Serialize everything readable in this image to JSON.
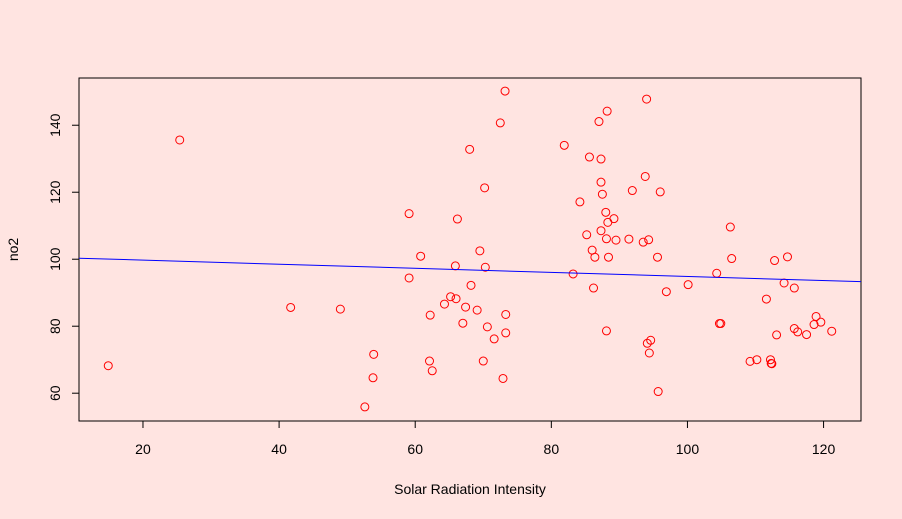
{
  "chart_data": {
    "type": "scatter",
    "title": "",
    "xlabel": "Solar Radiation Intensity",
    "ylabel": "no2",
    "xlim": [
      10.6,
      125.5
    ],
    "ylim": [
      51.7,
      154.1
    ],
    "xticks": [
      20,
      40,
      60,
      80,
      100,
      120
    ],
    "yticks": [
      60,
      80,
      100,
      120,
      140
    ],
    "grid": false,
    "legend": "none",
    "point_color": "#FF0000",
    "line_color": "#0000FF",
    "background": "#FFE4E1",
    "points": [
      [
        14.9,
        68.2
      ],
      [
        25.4,
        135.6
      ],
      [
        41.7,
        85.6
      ],
      [
        49.0,
        85.1
      ],
      [
        52.6,
        55.9
      ],
      [
        53.8,
        64.6
      ],
      [
        53.9,
        71.6
      ],
      [
        59.1,
        113.6
      ],
      [
        59.1,
        94.4
      ],
      [
        60.8,
        100.9
      ],
      [
        62.1,
        69.6
      ],
      [
        62.2,
        83.3
      ],
      [
        62.5,
        66.7
      ],
      [
        64.3,
        86.6
      ],
      [
        65.2,
        88.8
      ],
      [
        65.9,
        98.0
      ],
      [
        66.0,
        88.2
      ],
      [
        66.2,
        112.0
      ],
      [
        67.0,
        80.9
      ],
      [
        67.4,
        85.7
      ],
      [
        68.0,
        132.8
      ],
      [
        68.2,
        92.2
      ],
      [
        69.1,
        84.8
      ],
      [
        69.5,
        102.5
      ],
      [
        70.0,
        69.6
      ],
      [
        70.2,
        121.3
      ],
      [
        70.3,
        97.6
      ],
      [
        70.6,
        79.8
      ],
      [
        71.6,
        76.2
      ],
      [
        72.5,
        140.7
      ],
      [
        72.9,
        64.4
      ],
      [
        73.2,
        150.2
      ],
      [
        73.3,
        83.5
      ],
      [
        73.3,
        78.0
      ],
      [
        81.9,
        134.0
      ],
      [
        83.2,
        95.6
      ],
      [
        84.2,
        117.1
      ],
      [
        85.2,
        107.3
      ],
      [
        85.6,
        130.5
      ],
      [
        86.0,
        102.7
      ],
      [
        86.2,
        91.4
      ],
      [
        86.4,
        100.6
      ],
      [
        87.0,
        141.1
      ],
      [
        87.3,
        123.0
      ],
      [
        87.3,
        108.5
      ],
      [
        87.3,
        129.9
      ],
      [
        87.5,
        119.4
      ],
      [
        88.0,
        114.0
      ],
      [
        88.1,
        106.1
      ],
      [
        88.1,
        78.6
      ],
      [
        88.2,
        144.2
      ],
      [
        88.3,
        111.0
      ],
      [
        88.4,
        100.6
      ],
      [
        89.2,
        112.1
      ],
      [
        89.5,
        105.7
      ],
      [
        91.4,
        106.0
      ],
      [
        91.9,
        120.5
      ],
      [
        93.5,
        105.1
      ],
      [
        93.8,
        124.7
      ],
      [
        94.0,
        147.8
      ],
      [
        94.1,
        74.9
      ],
      [
        94.3,
        105.8
      ],
      [
        94.4,
        72.0
      ],
      [
        94.6,
        75.8
      ],
      [
        95.6,
        100.6
      ],
      [
        95.7,
        60.5
      ],
      [
        96.0,
        120.1
      ],
      [
        96.9,
        90.3
      ],
      [
        100.1,
        92.4
      ],
      [
        104.3,
        95.8
      ],
      [
        104.7,
        80.8
      ],
      [
        104.9,
        80.8
      ],
      [
        106.3,
        109.6
      ],
      [
        106.5,
        100.2
      ],
      [
        109.2,
        69.5
      ],
      [
        110.2,
        70.0
      ],
      [
        111.6,
        88.1
      ],
      [
        112.2,
        70.0
      ],
      [
        112.3,
        68.9
      ],
      [
        112.4,
        68.8
      ],
      [
        112.8,
        99.6
      ],
      [
        113.1,
        77.4
      ],
      [
        114.2,
        92.9
      ],
      [
        114.7,
        100.7
      ],
      [
        115.7,
        91.4
      ],
      [
        115.7,
        79.3
      ],
      [
        116.2,
        78.3
      ],
      [
        117.5,
        77.5
      ],
      [
        118.6,
        80.5
      ],
      [
        118.9,
        82.9
      ],
      [
        119.6,
        81.2
      ],
      [
        121.2,
        78.5
      ]
    ],
    "trend_line": {
      "x": [
        10.6,
        125.5
      ],
      "y": [
        100.3,
        93.3
      ]
    }
  }
}
